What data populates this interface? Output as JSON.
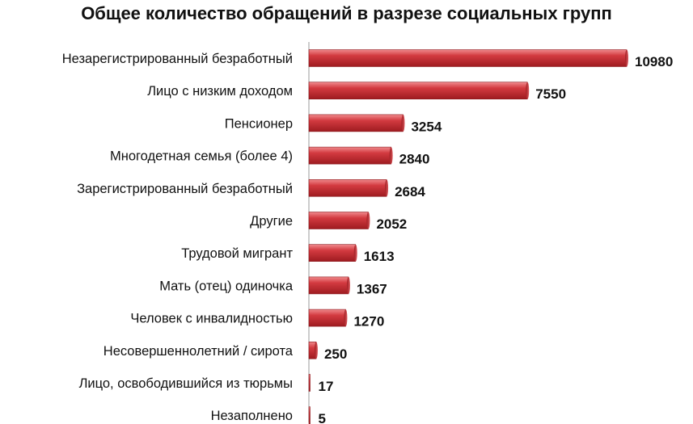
{
  "chart_data": {
    "type": "bar",
    "orientation": "horizontal",
    "title": "Общее количество обращений в разрезе социальных групп",
    "xlabel": "",
    "ylabel": "",
    "xlim": [
      0,
      11500
    ],
    "grid": false,
    "legend": "none",
    "bar_color": "#c0272d",
    "categories": [
      "Незарегистрированный безработный",
      "Лицо с низким доходом",
      "Пенсионер",
      "Многодетная семья (более 4)",
      "Зарегистрированный безработный",
      "Другие",
      "Трудовой мигрант",
      "Мать (отец) одиночка",
      "Человек с инвалидностью",
      "Несовершеннолетний / сирота",
      "Лицо, освободившийся из тюрьмы",
      "Незаполнено"
    ],
    "values": [
      10980,
      7550,
      3254,
      2840,
      2684,
      2052,
      1613,
      1367,
      1270,
      250,
      17,
      5
    ]
  }
}
